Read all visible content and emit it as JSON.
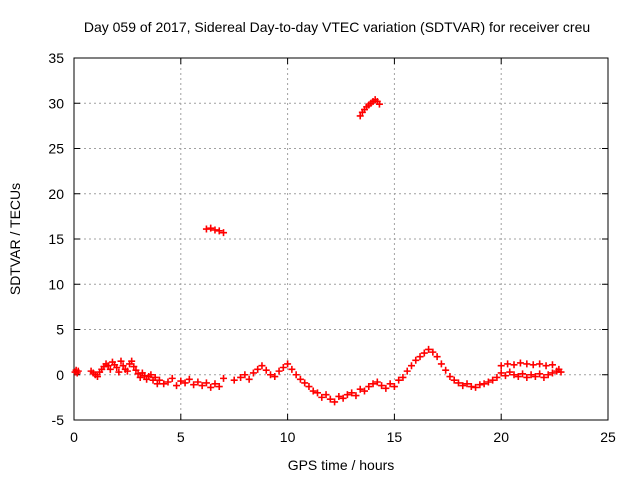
{
  "chart_data": {
    "type": "scatter",
    "title": "Day 059 of 2017, Sidereal Day-to-day VTEC variation (SDTVAR) for receiver creu",
    "xlabel": "GPS time / hours",
    "ylabel": "SDTVAR / TECUs",
    "xlim": [
      0,
      25
    ],
    "ylim": [
      -5,
      35
    ],
    "xticks": [
      0,
      5,
      10,
      15,
      20,
      25
    ],
    "yticks": [
      -5,
      0,
      5,
      10,
      15,
      20,
      25,
      30,
      35
    ],
    "grid": true,
    "marker": "plus",
    "color": "#ff0000",
    "series": [
      {
        "name": "SDTVAR",
        "x": [
          0.05,
          0.1,
          0.15,
          0.2,
          0.8,
          0.9,
          1.0,
          1.1,
          1.2,
          1.3,
          1.4,
          1.5,
          1.6,
          1.7,
          1.8,
          1.9,
          2.0,
          2.1,
          2.2,
          2.3,
          2.4,
          2.5,
          2.6,
          2.7,
          2.8,
          2.9,
          3.0,
          3.1,
          3.2,
          3.3,
          3.4,
          3.5,
          3.6,
          3.7,
          3.8,
          3.9,
          4.0,
          4.2,
          4.4,
          4.6,
          4.8,
          5.0,
          5.2,
          5.4,
          5.6,
          5.8,
          6.0,
          6.2,
          6.4,
          6.6,
          6.8,
          7.0,
          7.5,
          7.8,
          8.0,
          8.2,
          8.4,
          8.6,
          8.8,
          9.0,
          9.2,
          9.4,
          9.6,
          9.8,
          10.0,
          10.2,
          10.4,
          10.6,
          10.8,
          11.0,
          11.2,
          11.4,
          11.6,
          11.8,
          12.0,
          12.2,
          12.4,
          12.6,
          12.8,
          13.0,
          13.2,
          13.4,
          13.6,
          13.8,
          14.0,
          14.2,
          14.4,
          14.6,
          14.8,
          15.0,
          15.2,
          15.4,
          15.6,
          15.8,
          16.0,
          16.2,
          16.4,
          16.6,
          16.8,
          17.0,
          17.2,
          17.4,
          17.6,
          17.8,
          18.0,
          18.2,
          18.4,
          18.6,
          18.8,
          19.0,
          19.2,
          19.4,
          19.6,
          19.8,
          20.0,
          20.2,
          20.4,
          20.6,
          20.8,
          21.0,
          21.2,
          21.4,
          21.6,
          21.8,
          22.0,
          22.2,
          22.4,
          22.6,
          22.8,
          20.0,
          20.3,
          20.6,
          20.9,
          21.2,
          21.5,
          21.8,
          22.1,
          22.4,
          22.7,
          6.2,
          6.4,
          6.6,
          6.8,
          7.0,
          13.4,
          13.5,
          13.6,
          13.7,
          13.8,
          13.9,
          14.0,
          14.1,
          14.2,
          14.3
        ],
        "y": [
          0.3,
          0.5,
          0.2,
          0.4,
          0.4,
          0.2,
          0.0,
          -0.2,
          0.3,
          0.6,
          0.9,
          1.2,
          1.0,
          0.6,
          1.4,
          1.1,
          0.8,
          0.3,
          1.5,
          1.0,
          0.6,
          0.4,
          1.2,
          1.5,
          0.9,
          0.5,
          0.1,
          -0.3,
          0.2,
          -0.1,
          -0.5,
          -0.2,
          0.0,
          -0.6,
          -0.3,
          -1.0,
          -0.6,
          -1.0,
          -0.8,
          -0.4,
          -1.2,
          -0.7,
          -0.9,
          -0.5,
          -1.1,
          -0.8,
          -1.2,
          -0.9,
          -1.4,
          -1.0,
          -1.3,
          -0.4,
          -0.6,
          -0.3,
          0.0,
          -0.5,
          0.2,
          0.6,
          1.0,
          0.5,
          0.0,
          -0.2,
          0.4,
          0.8,
          1.2,
          0.6,
          0.0,
          -0.5,
          -0.9,
          -1.3,
          -1.8,
          -2.0,
          -2.5,
          -2.2,
          -2.7,
          -3.0,
          -2.4,
          -2.6,
          -2.2,
          -2.0,
          -2.3,
          -1.6,
          -1.8,
          -1.3,
          -1.0,
          -0.8,
          -1.2,
          -1.5,
          -1.0,
          -1.3,
          -0.6,
          -0.3,
          0.4,
          1.0,
          1.6,
          2.0,
          2.4,
          2.8,
          2.5,
          2.0,
          1.2,
          0.5,
          -0.2,
          -0.6,
          -0.9,
          -1.2,
          -1.0,
          -1.3,
          -1.4,
          -1.1,
          -1.0,
          -0.8,
          -0.6,
          -0.3,
          0.2,
          -0.1,
          0.3,
          0.0,
          -0.2,
          0.1,
          -0.3,
          0.0,
          -0.2,
          0.1,
          -0.3,
          0.0,
          0.2,
          0.4,
          0.3,
          1.0,
          1.2,
          1.1,
          1.3,
          1.2,
          1.1,
          1.2,
          1.0,
          1.1,
          0.6,
          16.1,
          16.2,
          16.0,
          15.9,
          15.7,
          28.6,
          29.0,
          29.3,
          29.6,
          29.8,
          30.0,
          30.2,
          30.4,
          30.2,
          29.9
        ]
      }
    ]
  }
}
